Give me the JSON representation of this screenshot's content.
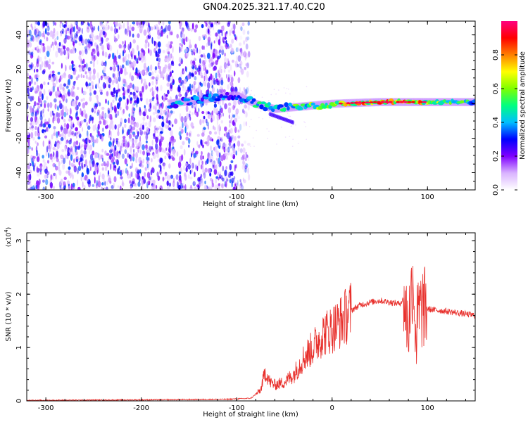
{
  "title": "GN04.2025.321.17.40.C20",
  "colors": {
    "snr_line": "#e8302c",
    "axis": "#000000"
  },
  "chart_data": [
    {
      "type": "heatmap",
      "xlabel": "Height of straight line (km)",
      "ylabel": "Frequency (Hz)",
      "xlim": [
        -320,
        150
      ],
      "ylim": [
        -50,
        48
      ],
      "xticks": [
        "-300",
        "-200",
        "-100",
        "0",
        "100"
      ],
      "yticks": [
        "40",
        "20",
        "0",
        "-20",
        "-40"
      ],
      "colorbar": {
        "label": "Normalized spectral amplitude",
        "range": [
          0,
          1
        ],
        "ticks": [
          "0.0",
          "0.2",
          "0.4",
          "0.6",
          "0.8"
        ],
        "colormap": [
          "#ffffff",
          "#d9b3ff",
          "#7f00ff",
          "#0000ff",
          "#00bfff",
          "#00ff80",
          "#7fff00",
          "#ffff00",
          "#ff8000",
          "#ff0000",
          "#ff0080"
        ]
      },
      "structure": {
        "noise_region_x": [
          -320,
          -95
        ],
        "signal_track": [
          {
            "x": -170,
            "freq": 0,
            "amp": 0.45
          },
          {
            "x": -130,
            "freq": 3,
            "amp": 0.4
          },
          {
            "x": -100,
            "freq": 5,
            "amp": 0.4
          },
          {
            "x": -80,
            "freq": 0,
            "amp": 0.5
          },
          {
            "x": -60,
            "freq": -3,
            "amp": 0.55
          },
          {
            "x": -40,
            "freq": -2,
            "amp": 0.6
          },
          {
            "x": 0,
            "freq": 0,
            "amp": 0.7
          },
          {
            "x": 50,
            "freq": 1,
            "amp": 0.9
          },
          {
            "x": 90,
            "freq": 1,
            "amp": 0.85
          },
          {
            "x": 150,
            "freq": 1,
            "amp": 0.5
          }
        ]
      }
    },
    {
      "type": "line",
      "xlabel": "Height of straight line (km)",
      "ylabel": "SNR (10 * v/v)",
      "yscale_label": "(x10",
      "yscale_exp": "4",
      "yscale_close": ")",
      "xlim": [
        -320,
        150
      ],
      "ylim": [
        0,
        3.15
      ],
      "xticks": [
        "-300",
        "-200",
        "-100",
        "0",
        "100"
      ],
      "yticks": [
        "0",
        "1",
        "2",
        "3"
      ],
      "series": [
        {
          "x": [
            -320,
            -200,
            -110,
            -85,
            -75,
            -70,
            -65,
            -60,
            -50,
            -40,
            -30,
            -20,
            -10,
            0,
            10,
            20,
            30,
            40,
            50,
            60,
            70,
            75,
            80,
            85,
            88,
            90,
            95,
            100,
            120,
            150
          ],
          "y": [
            0.01,
            0.02,
            0.03,
            0.05,
            0.2,
            0.55,
            0.35,
            0.3,
            0.35,
            0.5,
            0.8,
            1.0,
            1.25,
            1.35,
            1.5,
            1.7,
            1.8,
            1.85,
            1.88,
            1.85,
            1.82,
            1.9,
            1.4,
            2.4,
            1.2,
            1.6,
            1.75,
            1.72,
            1.68,
            1.6
          ]
        }
      ]
    }
  ]
}
